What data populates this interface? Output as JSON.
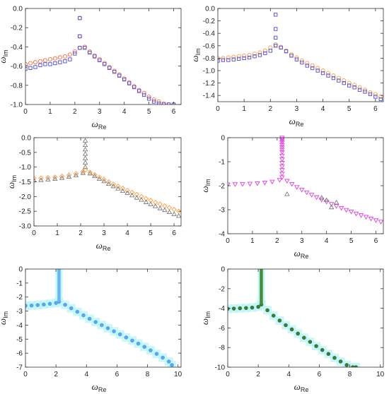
{
  "chart_data": [
    {
      "type": "scatter",
      "xlabel": "ω",
      "xlabel_sub": "Re",
      "ylabel": "ω",
      "ylabel_sub": "Im",
      "xlim": [
        0,
        6.3
      ],
      "ylim": [
        -1.0,
        0.0
      ],
      "xticks": [
        0,
        1,
        2,
        3,
        4,
        5,
        6
      ],
      "xtick_labels": [
        "0",
        "1",
        "2",
        "3",
        "4",
        "5",
        "6"
      ],
      "yticks": [
        -1.0,
        -0.8,
        -0.6,
        -0.4,
        -0.2,
        0.0
      ],
      "ytick_labels": [
        "-1.0",
        "-0.8",
        "-0.6",
        "-0.4",
        "-0.2",
        "0.0"
      ],
      "series": [
        {
          "marker": "circle",
          "color": "#ff6a3d",
          "x": [
            0.0,
            0.2,
            0.4,
            0.6,
            0.8,
            1.0,
            1.2,
            1.4,
            1.6,
            1.8,
            2.0,
            2.2,
            2.2,
            2.2,
            2.4,
            2.6,
            2.8,
            3.0,
            3.2,
            3.4,
            3.6,
            3.8,
            4.0,
            4.2,
            4.4,
            4.6,
            4.8,
            5.0,
            5.2,
            5.4,
            5.6,
            5.8,
            6.0
          ],
          "y": [
            -0.58,
            -0.57,
            -0.56,
            -0.55,
            -0.54,
            -0.53,
            -0.52,
            -0.51,
            -0.5,
            -0.48,
            -0.45,
            -0.41,
            -0.29,
            -0.1,
            -0.4,
            -0.45,
            -0.49,
            -0.53,
            -0.57,
            -0.61,
            -0.65,
            -0.69,
            -0.73,
            -0.77,
            -0.81,
            -0.85,
            -0.88,
            -0.92,
            -0.95,
            -0.97,
            -0.99,
            -1.0,
            -1.0
          ]
        },
        {
          "marker": "square",
          "color": "#4a4ad8",
          "x": [
            0.0,
            0.2,
            0.4,
            0.6,
            0.8,
            1.0,
            1.2,
            1.4,
            1.6,
            1.8,
            2.0,
            2.2,
            2.2,
            2.2,
            2.4,
            2.6,
            2.8,
            3.0,
            3.2,
            3.4,
            3.6,
            3.8,
            4.0,
            4.2,
            4.4,
            4.6,
            4.8,
            5.0,
            5.2,
            5.4,
            5.6,
            5.8,
            6.0
          ],
          "y": [
            -0.63,
            -0.62,
            -0.61,
            -0.59,
            -0.58,
            -0.58,
            -0.57,
            -0.56,
            -0.55,
            -0.53,
            -0.47,
            -0.41,
            -0.29,
            -0.1,
            -0.41,
            -0.46,
            -0.5,
            -0.54,
            -0.58,
            -0.62,
            -0.66,
            -0.7,
            -0.74,
            -0.78,
            -0.82,
            -0.86,
            -0.9,
            -0.94,
            -0.97,
            -0.99,
            -1.0,
            -1.0,
            -1.0
          ]
        }
      ]
    },
    {
      "type": "scatter",
      "xlabel": "ω",
      "xlabel_sub": "Re",
      "ylabel": "ω",
      "ylabel_sub": "Im",
      "xlim": [
        0,
        6.3
      ],
      "ylim": [
        -1.5,
        0.0
      ],
      "xticks": [
        0,
        1,
        2,
        3,
        4,
        5,
        6
      ],
      "xtick_labels": [
        "0",
        "1",
        "2",
        "3",
        "4",
        "5",
        "6"
      ],
      "yticks": [
        -1.4,
        -1.2,
        -1.0,
        -0.8,
        -0.6,
        -0.4,
        -0.2,
        0.0
      ],
      "ytick_labels": [
        "-1.4",
        "-1.2",
        "-1.0",
        "-0.8",
        "-0.6",
        "-0.4",
        "-0.2",
        "0.0"
      ],
      "series": [
        {
          "marker": "circle",
          "color": "#ff9a3d",
          "x": [
            0.0,
            0.2,
            0.4,
            0.6,
            0.8,
            1.0,
            1.2,
            1.4,
            1.6,
            1.8,
            2.0,
            2.2,
            2.4,
            2.6,
            2.8,
            3.0,
            3.2,
            3.4,
            3.6,
            3.8,
            4.0,
            4.2,
            4.4,
            4.6,
            4.8,
            5.0,
            5.2,
            5.4,
            5.6,
            5.8,
            6.0,
            6.2
          ],
          "y": [
            -0.8,
            -0.8,
            -0.79,
            -0.78,
            -0.77,
            -0.76,
            -0.75,
            -0.73,
            -0.71,
            -0.68,
            -0.63,
            -0.58,
            -0.62,
            -0.68,
            -0.74,
            -0.79,
            -0.84,
            -0.88,
            -0.92,
            -0.96,
            -1.0,
            -1.04,
            -1.08,
            -1.12,
            -1.16,
            -1.2,
            -1.23,
            -1.27,
            -1.31,
            -1.35,
            -1.38,
            -1.42
          ]
        },
        {
          "marker": "square",
          "color": "#4a4ad8",
          "x": [
            0.0,
            0.2,
            0.4,
            0.6,
            0.8,
            1.0,
            1.2,
            1.4,
            1.6,
            1.8,
            2.0,
            2.2,
            2.2,
            2.2,
            2.2,
            2.4,
            2.6,
            2.8,
            3.0,
            3.2,
            3.4,
            3.6,
            3.8,
            4.0,
            4.2,
            4.4,
            4.6,
            4.8,
            5.0,
            5.2,
            5.4,
            5.6,
            5.8,
            6.0,
            6.2
          ],
          "y": [
            -0.84,
            -0.83,
            -0.83,
            -0.82,
            -0.81,
            -0.8,
            -0.79,
            -0.77,
            -0.75,
            -0.72,
            -0.68,
            -0.6,
            -0.47,
            -0.33,
            -0.1,
            -0.63,
            -0.69,
            -0.76,
            -0.82,
            -0.87,
            -0.92,
            -0.96,
            -1.0,
            -1.04,
            -1.08,
            -1.12,
            -1.16,
            -1.2,
            -1.24,
            -1.27,
            -1.31,
            -1.34,
            -1.38,
            -1.42,
            -1.46
          ]
        }
      ]
    },
    {
      "type": "scatter",
      "xlabel": "ω",
      "xlabel_sub": "Re",
      "ylabel": "ω",
      "ylabel_sub": "Im",
      "xlim": [
        0,
        6.3
      ],
      "ylim": [
        -3.0,
        0.0
      ],
      "xticks": [
        0,
        1,
        2,
        3,
        4,
        5,
        6
      ],
      "xtick_labels": [
        "0",
        "1",
        "2",
        "3",
        "4",
        "5",
        "6"
      ],
      "yticks": [
        -3.0,
        -2.5,
        -2.0,
        -1.5,
        -1.0,
        -0.5,
        0.0
      ],
      "ytick_labels": [
        "-3.0",
        "-2.5",
        "-2.0",
        "-1.5",
        "-1.0",
        "-0.5",
        "0.0"
      ],
      "series": [
        {
          "marker": "diamond",
          "color": "#ff9a3d",
          "x": [
            0.0,
            0.3,
            0.6,
            0.9,
            1.2,
            1.5,
            1.8,
            2.1,
            2.2,
            2.4,
            2.6,
            2.8,
            3.0,
            3.2,
            3.4,
            3.6,
            3.8,
            4.0,
            4.2,
            4.4,
            4.6,
            4.8,
            5.0,
            5.2,
            5.4,
            5.6,
            5.8,
            6.0,
            6.2
          ],
          "y": [
            -1.38,
            -1.37,
            -1.36,
            -1.34,
            -1.31,
            -1.27,
            -1.22,
            -1.15,
            -1.1,
            -1.18,
            -1.26,
            -1.34,
            -1.42,
            -1.5,
            -1.58,
            -1.65,
            -1.72,
            -1.79,
            -1.86,
            -1.93,
            -2.0,
            -2.07,
            -2.13,
            -2.2,
            -2.26,
            -2.32,
            -2.38,
            -2.44,
            -2.5
          ]
        },
        {
          "marker": "triangle",
          "color": "#6e6e6e",
          "x": [
            0.0,
            0.3,
            0.6,
            0.9,
            1.2,
            1.5,
            1.8,
            2.1,
            2.2,
            2.2,
            2.2,
            2.2,
            2.2,
            2.2,
            2.2,
            2.4,
            2.6,
            2.8,
            3.0,
            3.2,
            3.4,
            3.6,
            3.8,
            4.0,
            4.2,
            4.4,
            4.6,
            4.8,
            5.0,
            5.2,
            5.4,
            5.6,
            5.8,
            6.0,
            6.2
          ],
          "y": [
            -1.45,
            -1.44,
            -1.42,
            -1.4,
            -1.37,
            -1.33,
            -1.28,
            -1.2,
            -1.0,
            -0.85,
            -0.7,
            -0.55,
            -0.4,
            -0.25,
            -0.1,
            -1.22,
            -1.31,
            -1.4,
            -1.48,
            -1.57,
            -1.65,
            -1.73,
            -1.81,
            -1.88,
            -1.96,
            -2.04,
            -2.11,
            -2.19,
            -2.26,
            -2.33,
            -2.4,
            -2.46,
            -2.53,
            -2.6,
            -2.66
          ]
        }
      ]
    },
    {
      "type": "scatter",
      "xlabel": "ω",
      "xlabel_sub": "Re",
      "ylabel": "ω",
      "ylabel_sub": "Im",
      "xlim": [
        0,
        6.3
      ],
      "ylim": [
        -4.0,
        0.0
      ],
      "xticks": [
        0,
        1,
        2,
        3,
        4,
        5,
        6
      ],
      "xtick_labels": [
        "0",
        "1",
        "2",
        "3",
        "4",
        "5",
        "6"
      ],
      "yticks": [
        -4,
        -3,
        -2,
        -1,
        0
      ],
      "ytick_labels": [
        "-4",
        "-3",
        "-2",
        "-1",
        "0"
      ],
      "series": [
        {
          "marker": "triangle-down",
          "color": "#e040e0",
          "x": [
            0.0,
            0.3,
            0.6,
            0.9,
            1.2,
            1.5,
            1.8,
            2.1,
            2.2,
            2.2,
            2.2,
            2.2,
            2.2,
            2.2,
            2.2,
            2.2,
            2.2,
            2.2,
            2.2,
            2.2,
            2.2,
            2.2,
            2.2,
            2.4,
            2.6,
            2.8,
            3.0,
            3.2,
            3.4,
            3.6,
            3.8,
            4.0,
            4.2,
            4.4,
            4.6,
            4.8,
            5.0,
            5.2,
            5.4,
            5.6,
            5.8,
            6.0,
            6.2
          ],
          "y": [
            -1.95,
            -1.94,
            -1.93,
            -1.92,
            -1.9,
            -1.87,
            -1.83,
            -1.76,
            -1.65,
            -1.5,
            -1.35,
            -1.2,
            -1.05,
            -0.9,
            -0.75,
            -0.6,
            -0.5,
            -0.4,
            -0.3,
            -0.2,
            -0.12,
            -0.06,
            0.0,
            -1.8,
            -1.93,
            -2.06,
            -2.17,
            -2.28,
            -2.38,
            -2.48,
            -2.58,
            -2.67,
            -2.76,
            -2.85,
            -2.93,
            -3.01,
            -3.08,
            -3.16,
            -3.23,
            -3.3,
            -3.37,
            -3.44,
            -3.5
          ]
        },
        {
          "marker": "triangle",
          "color": "#6e6e6e",
          "x": [
            2.4,
            3.8,
            4.0,
            4.2,
            4.4
          ],
          "y": [
            -2.35,
            -2.5,
            -2.6,
            -2.9,
            -2.7
          ]
        }
      ]
    },
    {
      "type": "scatter",
      "xlabel": "ω",
      "xlabel_sub": "Re",
      "ylabel": "ω",
      "ylabel_sub": "Im",
      "xlim": [
        0,
        10.2
      ],
      "ylim": [
        -7.0,
        0.0
      ],
      "xticks": [
        0,
        2,
        4,
        6,
        8,
        10
      ],
      "xtick_labels": [
        "0",
        "2",
        "4",
        "6",
        "8",
        "10"
      ],
      "yticks": [
        -7,
        -6,
        -5,
        -4,
        -3,
        -2,
        -1,
        0
      ],
      "ytick_labels": [
        "-7",
        "-6",
        "-5",
        "-4",
        "-3",
        "-2",
        "-1",
        "0"
      ],
      "series": [
        {
          "marker": "circle-filled",
          "color": "#5aa6e8",
          "halo": "#b8f4f8",
          "x": [
            0.0,
            0.4,
            0.8,
            1.2,
            1.6,
            2.0,
            2.2,
            2.6,
            3.0,
            3.4,
            3.8,
            4.2,
            4.6,
            5.0,
            5.4,
            5.8,
            6.2,
            6.6,
            7.0,
            7.4,
            7.8,
            8.2,
            8.6,
            9.0,
            9.4,
            9.6
          ],
          "y": [
            -2.62,
            -2.6,
            -2.57,
            -2.53,
            -2.48,
            -2.42,
            -2.33,
            -2.55,
            -2.8,
            -3.05,
            -3.3,
            -3.55,
            -3.78,
            -4.0,
            -4.22,
            -4.44,
            -4.66,
            -4.88,
            -5.1,
            -5.32,
            -5.55,
            -5.8,
            -6.05,
            -6.32,
            -6.6,
            -6.85
          ]
        },
        {
          "marker": "vline-band",
          "color": "#6ab4f0",
          "halo": "#b8f4f8",
          "x": [
            2.2
          ],
          "y_from": [
            0.0
          ],
          "y_to": [
            -2.33
          ]
        }
      ]
    },
    {
      "type": "scatter",
      "xlabel": "ω",
      "xlabel_sub": "Re",
      "ylabel": "ω",
      "ylabel_sub": "Im",
      "xlim": [
        0,
        10.2
      ],
      "ylim": [
        -10.0,
        0.0
      ],
      "xticks": [
        0,
        2,
        4,
        6,
        8,
        10
      ],
      "xtick_labels": [
        "0",
        "2",
        "4",
        "6",
        "8",
        "10"
      ],
      "yticks": [
        -10,
        -8,
        -6,
        -4,
        -2,
        0
      ],
      "ytick_labels": [
        "-10",
        "-8",
        "-6",
        "-4",
        "-2",
        "0"
      ],
      "series": [
        {
          "marker": "circle-filled",
          "color": "#3c7a3c",
          "halo": "#b8f4f8",
          "x": [
            0.0,
            0.4,
            0.8,
            1.2,
            1.6,
            2.0,
            2.2,
            2.6,
            3.0,
            3.4,
            3.8,
            4.2,
            4.6,
            5.0,
            5.4,
            5.8,
            6.2,
            6.6,
            7.0,
            7.4,
            7.8,
            8.2,
            8.4
          ],
          "y": [
            -4.05,
            -4.03,
            -4.0,
            -3.97,
            -3.93,
            -3.85,
            -3.62,
            -4.2,
            -4.75,
            -5.25,
            -5.72,
            -6.15,
            -6.58,
            -7.0,
            -7.42,
            -7.85,
            -8.25,
            -8.65,
            -9.05,
            -9.42,
            -9.78,
            -10.0,
            -10.0
          ]
        },
        {
          "marker": "vline-band",
          "color": "#4a8a3a",
          "halo": "#b8f4f8",
          "x": [
            2.2
          ],
          "y_from": [
            0.0
          ],
          "y_to": [
            -3.62
          ]
        }
      ]
    }
  ]
}
